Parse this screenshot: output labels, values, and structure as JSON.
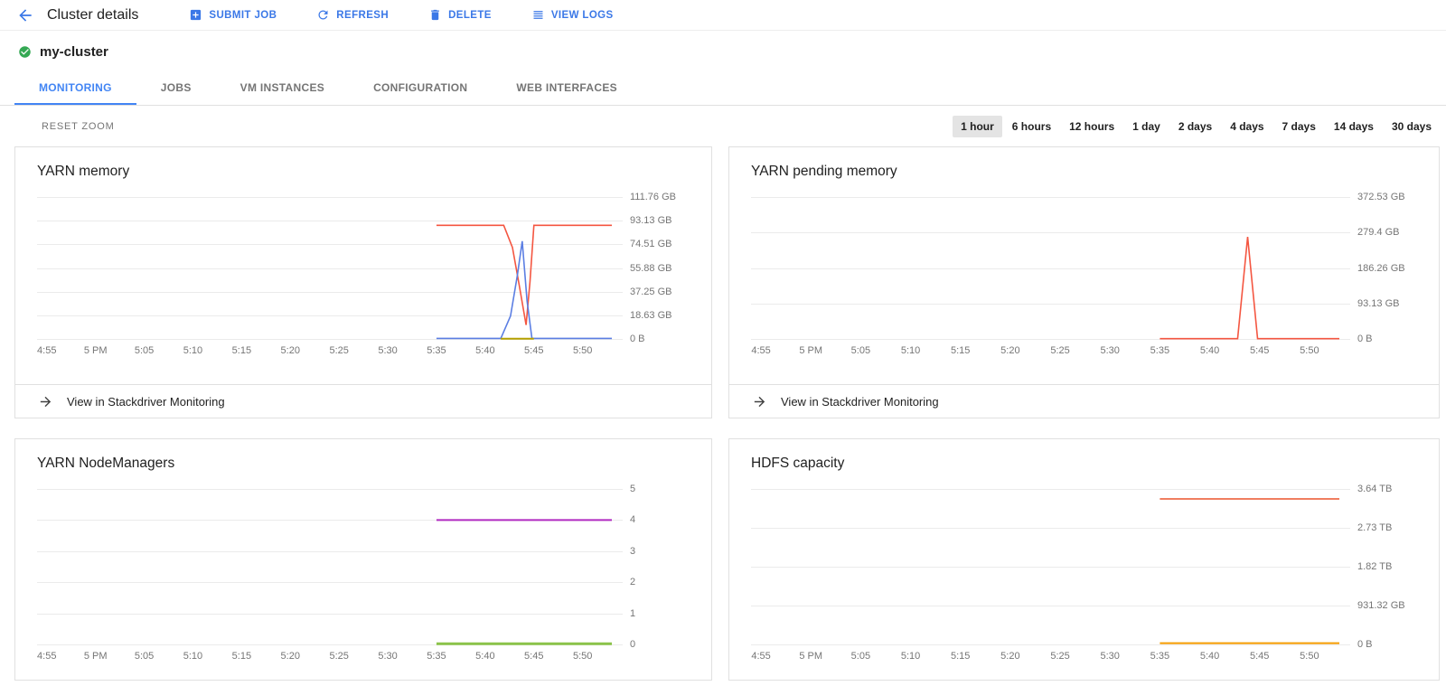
{
  "header": {
    "title": "Cluster details",
    "actions": [
      {
        "label": "SUBMIT JOB",
        "icon": "add-box-icon"
      },
      {
        "label": "REFRESH",
        "icon": "refresh-icon"
      },
      {
        "label": "DELETE",
        "icon": "trash-icon"
      },
      {
        "label": "VIEW LOGS",
        "icon": "log-lines-icon"
      }
    ]
  },
  "cluster": {
    "name": "my-cluster",
    "status": "ok"
  },
  "tabs": [
    {
      "label": "MONITORING",
      "active": true
    },
    {
      "label": "JOBS",
      "active": false
    },
    {
      "label": "VM INSTANCES",
      "active": false
    },
    {
      "label": "CONFIGURATION",
      "active": false
    },
    {
      "label": "WEB INTERFACES",
      "active": false
    }
  ],
  "controls": {
    "reset_zoom_label": "RESET ZOOM",
    "time_ranges": [
      "1 hour",
      "6 hours",
      "12 hours",
      "1 day",
      "2 days",
      "4 days",
      "7 days",
      "14 days",
      "30 days"
    ],
    "selected_range": "1 hour"
  },
  "stackdriver_link_label": "View in Stackdriver Monitoring",
  "colors": {
    "accent_blue": "#3b78e7",
    "tab_active": "#4285f4",
    "status_green": "#34a853",
    "text_primary": "#212121",
    "text_secondary": "#757575",
    "border": "#e0e0e0",
    "gridline": "#ebebeb",
    "chip_bg": "#e4e4e4"
  },
  "chart_data": [
    {
      "type": "line",
      "title": "YARN memory",
      "y_max": 111.76,
      "y_unit": "GB",
      "y_tick_labels": [
        "111.76 GB",
        "93.13 GB",
        "74.51 GB",
        "55.88 GB",
        "37.25 GB",
        "18.63 GB",
        "0 B"
      ],
      "x_domain": [
        0,
        59
      ],
      "x_ticks": [
        {
          "m": 1,
          "label": "4:55"
        },
        {
          "m": 6,
          "label": "5 PM"
        },
        {
          "m": 11,
          "label": "5:05"
        },
        {
          "m": 16,
          "label": "5:10"
        },
        {
          "m": 21,
          "label": "5:15"
        },
        {
          "m": 26,
          "label": "5:20"
        },
        {
          "m": 31,
          "label": "5:25"
        },
        {
          "m": 36,
          "label": "5:30"
        },
        {
          "m": 41,
          "label": "5:35"
        },
        {
          "m": 46,
          "label": "5:40"
        },
        {
          "m": 51,
          "label": "5:45"
        },
        {
          "m": 56,
          "label": "5:50"
        }
      ],
      "series": [
        {
          "name": "orange-red",
          "color": "#f45641",
          "width": 1.6,
          "points": [
            [
              41,
              89.5
            ],
            [
              47.9,
              89.5
            ],
            [
              48.8,
              72
            ],
            [
              49.5,
              42
            ],
            [
              50.2,
              11
            ],
            [
              50.6,
              45
            ],
            [
              51.0,
              89.5
            ],
            [
              59,
              89.5
            ]
          ]
        },
        {
          "name": "blue",
          "color": "#5b7ee3",
          "width": 1.6,
          "points": [
            [
              41,
              0.4
            ],
            [
              47.6,
              0.4
            ],
            [
              48.6,
              18
            ],
            [
              49.3,
              50
            ],
            [
              49.8,
              77
            ],
            [
              50.3,
              30
            ],
            [
              50.8,
              0.4
            ],
            [
              59,
              0.4
            ]
          ]
        },
        {
          "name": "yellow",
          "color": "#b4a000",
          "width": 2,
          "points": [
            [
              47.6,
              0.2
            ],
            [
              51,
              0.2
            ]
          ]
        }
      ],
      "grid": true,
      "legend": "none"
    },
    {
      "type": "line",
      "title": "YARN pending memory",
      "y_max": 372.53,
      "y_unit": "GB",
      "y_tick_labels": [
        "372.53 GB",
        "279.4 GB",
        "186.26 GB",
        "93.13 GB",
        "0 B"
      ],
      "x_domain": [
        0,
        59
      ],
      "x_ticks": [
        {
          "m": 1,
          "label": "4:55"
        },
        {
          "m": 6,
          "label": "5 PM"
        },
        {
          "m": 11,
          "label": "5:05"
        },
        {
          "m": 16,
          "label": "5:10"
        },
        {
          "m": 21,
          "label": "5:15"
        },
        {
          "m": 26,
          "label": "5:20"
        },
        {
          "m": 31,
          "label": "5:25"
        },
        {
          "m": 36,
          "label": "5:30"
        },
        {
          "m": 41,
          "label": "5:35"
        },
        {
          "m": 46,
          "label": "5:40"
        },
        {
          "m": 51,
          "label": "5:45"
        },
        {
          "m": 56,
          "label": "5:50"
        }
      ],
      "series": [
        {
          "name": "orange-red",
          "color": "#f45641",
          "width": 1.6,
          "points": [
            [
              41,
              0.8
            ],
            [
              48.8,
              0.8
            ],
            [
              49.8,
              268
            ],
            [
              50.8,
              0.8
            ],
            [
              59,
              0.8
            ]
          ]
        }
      ],
      "grid": true,
      "legend": "none"
    },
    {
      "type": "line",
      "title": "YARN NodeManagers",
      "y_max": 5,
      "y_unit": "count",
      "y_tick_labels": [
        "5",
        "4",
        "3",
        "2",
        "1",
        "0"
      ],
      "x_domain": [
        0,
        59
      ],
      "x_ticks": [
        {
          "m": 1,
          "label": "4:55"
        },
        {
          "m": 6,
          "label": "5 PM"
        },
        {
          "m": 11,
          "label": "5:05"
        },
        {
          "m": 16,
          "label": "5:10"
        },
        {
          "m": 21,
          "label": "5:15"
        },
        {
          "m": 26,
          "label": "5:20"
        },
        {
          "m": 31,
          "label": "5:25"
        },
        {
          "m": 36,
          "label": "5:30"
        },
        {
          "m": 41,
          "label": "5:35"
        },
        {
          "m": 46,
          "label": "5:40"
        },
        {
          "m": 51,
          "label": "5:45"
        },
        {
          "m": 56,
          "label": "5:50"
        }
      ],
      "series": [
        {
          "name": "magenta",
          "color": "#b12bc1",
          "width": 2,
          "points": [
            [
              41,
              4
            ],
            [
              59,
              4
            ]
          ]
        },
        {
          "name": "green",
          "color": "#8bc34a",
          "width": 3,
          "points": [
            [
              41,
              0.02
            ],
            [
              59,
              0.02
            ]
          ]
        }
      ],
      "grid": true,
      "legend": "none"
    },
    {
      "type": "line",
      "title": "HDFS capacity",
      "y_max": 3727,
      "y_unit": "GB",
      "y_tick_labels": [
        "3.64 TB",
        "2.73 TB",
        "1.82 TB",
        "931.32 GB",
        "0 B"
      ],
      "x_domain": [
        0,
        59
      ],
      "x_ticks": [
        {
          "m": 1,
          "label": "4:55"
        },
        {
          "m": 6,
          "label": "5 PM"
        },
        {
          "m": 11,
          "label": "5:05"
        },
        {
          "m": 16,
          "label": "5:10"
        },
        {
          "m": 21,
          "label": "5:15"
        },
        {
          "m": 26,
          "label": "5:20"
        },
        {
          "m": 31,
          "label": "5:25"
        },
        {
          "m": 36,
          "label": "5:30"
        },
        {
          "m": 41,
          "label": "5:35"
        },
        {
          "m": 46,
          "label": "5:40"
        },
        {
          "m": 51,
          "label": "5:45"
        },
        {
          "m": 56,
          "label": "5:50"
        }
      ],
      "series": [
        {
          "name": "salmon",
          "color": "#f07e60",
          "width": 2,
          "points": [
            [
              41,
              3490
            ],
            [
              59,
              3490
            ]
          ]
        },
        {
          "name": "orange",
          "color": "#f59b00",
          "width": 2,
          "points": [
            [
              41,
              30
            ],
            [
              59,
              30
            ]
          ]
        }
      ],
      "grid": true,
      "legend": "none"
    }
  ]
}
